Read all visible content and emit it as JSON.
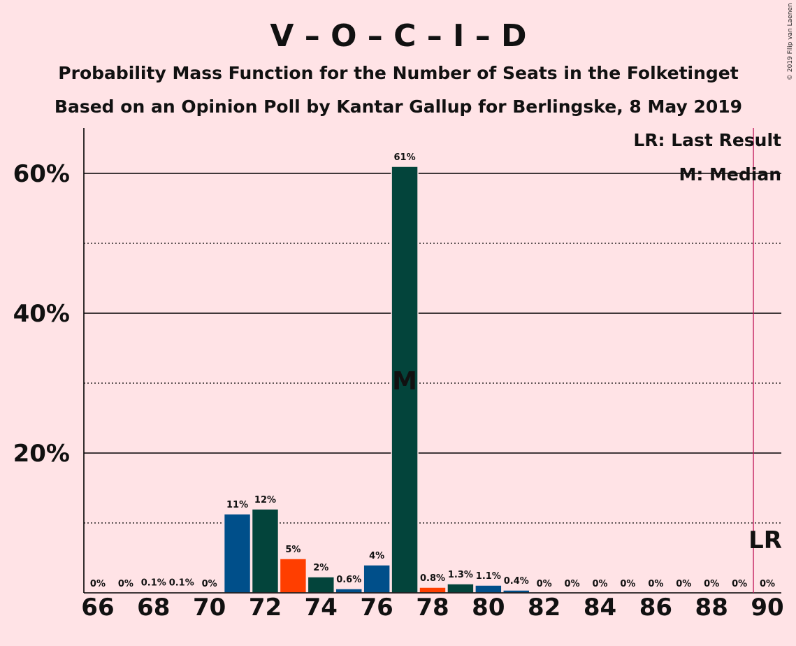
{
  "chart_data": {
    "type": "bar",
    "title": "V – O – C – I – D",
    "subtitle": "Probability Mass Function for the Number of Seats in the Folketinget",
    "subtitle2": "Based on an Opinion Poll by Kantar Gallup for Berlingske, 8 May 2019",
    "copyright": "© 2019 Filip van Laenen",
    "x": [
      66,
      67,
      68,
      69,
      70,
      71,
      72,
      73,
      74,
      75,
      76,
      77,
      78,
      79,
      80,
      81,
      82,
      83,
      84,
      85,
      86,
      87,
      88,
      89,
      90
    ],
    "values": [
      0,
      0,
      0.1,
      0.1,
      0,
      11.3,
      12,
      4.9,
      2.3,
      0.6,
      4,
      61,
      0.8,
      1.3,
      1.1,
      0.4,
      0,
      0,
      0,
      0,
      0,
      0,
      0,
      0,
      0
    ],
    "labels": [
      "0%",
      "0%",
      "0.1%",
      "0.1%",
      "0%",
      "11%",
      "12%",
      "5%",
      "2%",
      "0.6%",
      "4%",
      "61%",
      "0.8%",
      "1.3%",
      "1.1%",
      "0.4%",
      "0%",
      "0%",
      "0%",
      "0%",
      "0%",
      "0%",
      "0%",
      "0%",
      "0%"
    ],
    "bar_colors": [
      "#004F8A",
      "#004F8A",
      "#004F8A",
      "#004F8A",
      "#004F8A",
      "#004F8A",
      "#03443B",
      "#FF3E00",
      "#03443B",
      "#004F8A",
      "#004F8A",
      "#03443B",
      "#FF3E00",
      "#03443B",
      "#004F8A",
      "#004F8A",
      "#004F8A",
      "#004F8A",
      "#004F8A",
      "#004F8A",
      "#004F8A",
      "#004F8A",
      "#004F8A",
      "#004F8A",
      "#004F8A"
    ],
    "xticks": [
      "66",
      "68",
      "70",
      "72",
      "74",
      "76",
      "78",
      "80",
      "82",
      "84",
      "86",
      "88",
      "90"
    ],
    "yticks": [
      "20%",
      "40%",
      "60%"
    ],
    "ylim": [
      0,
      66.5
    ],
    "xlim": [
      65.5,
      90.5
    ],
    "grid": true,
    "median": 77,
    "median_label": "M",
    "last_result": 89.5,
    "last_result_label": "LR",
    "legend": {
      "lr": "LR: Last Result",
      "m": "M: Median",
      "position": "top-right"
    },
    "colors": {
      "background": "#FFE3E6",
      "blue": "#004F8A",
      "green": "#03443B",
      "orange": "#FF3E00",
      "lr_line": "#C2185B"
    }
  }
}
